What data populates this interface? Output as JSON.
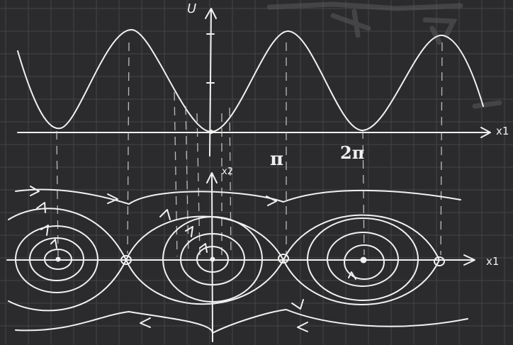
{
  "top_plot": {
    "vertical_axis_label": "U",
    "horizontal_axis_label": "x1",
    "tick_labels": [
      "π",
      "2π"
    ]
  },
  "phase_plot": {
    "vertical_axis_label": "x2",
    "horizontal_axis_label": "x1"
  },
  "colors": {
    "background": "#2b2b2d",
    "grid": "#444447",
    "ink": "#f1f1f1"
  }
}
